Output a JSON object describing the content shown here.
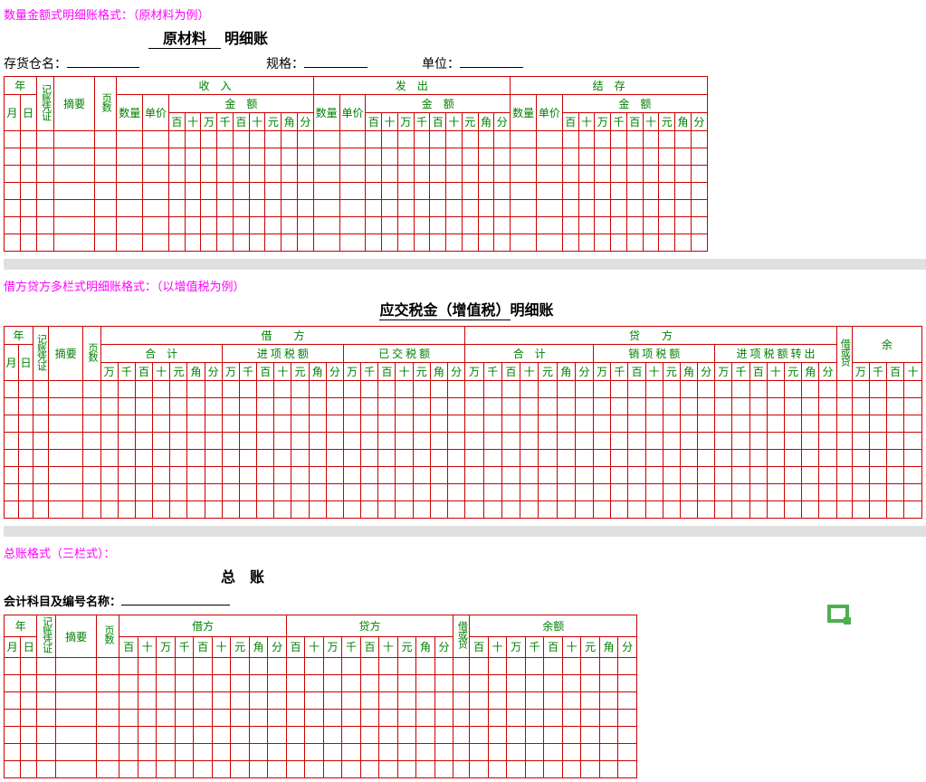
{
  "colors": {
    "border": "#cc0000",
    "header_text": "#008000",
    "title": "#ff00ff",
    "bg": "#ffffff",
    "spacer": "#e0e0e0"
  },
  "sec1": {
    "title": "数量金额式明细账格式：（原材料为例）",
    "material_label": "原材料",
    "ledger_suffix": "明细账",
    "warehouse_label": "存货仓名：",
    "spec_label": "规格：",
    "unit_label": "单位：",
    "cols": {
      "year": "年",
      "voucher": "记账凭证",
      "summary": "摘要",
      "page": "页数",
      "month": "月",
      "day": "日",
      "in": "收　入",
      "out": "发　出",
      "balance": "结　存",
      "qty": "数量",
      "price": "单价",
      "amount": "金　额",
      "digits": [
        "百",
        "十",
        "万",
        "千",
        "百",
        "十",
        "元",
        "角",
        "分"
      ]
    },
    "blank_rows": 7
  },
  "sec2": {
    "title": "借方贷方多栏式明细账格式：（以增值税为例）",
    "account_label": "应交税金（增值税）",
    "ledger_suffix": "明细账",
    "cols": {
      "year": "年",
      "voucher": "记账凭证",
      "summary": "摘要",
      "page": "页数",
      "month": "月",
      "day": "日",
      "debit": "借　　方",
      "credit": "贷　　方",
      "total": "合　计",
      "input_tax": "进 项 税 额",
      "paid_tax": "已 交 税 额",
      "output_tax": "销 项 税 额",
      "input_transfer": "进 项 税 额 转 出",
      "dc": "借或贷",
      "bal": "余",
      "digits7": [
        "万",
        "千",
        "百",
        "十",
        "元",
        "角",
        "分"
      ],
      "digits5": [
        "万",
        "千",
        "百",
        "十"
      ]
    },
    "blank_rows": 8
  },
  "sec3": {
    "title": "总账格式（三栏式）：",
    "main_title": "总　账",
    "account_label": "会计科目及编号名称：",
    "cols": {
      "year": "年",
      "voucher": "记账凭证",
      "summary": "摘要",
      "page": "页数",
      "month": "月",
      "day": "日",
      "debit": "借方",
      "credit": "贷方",
      "dc": "借或贷",
      "balance": "余额",
      "digits": [
        "百",
        "十",
        "万",
        "千",
        "百",
        "十",
        "元",
        "角",
        "分"
      ]
    },
    "blank_rows": 7
  }
}
